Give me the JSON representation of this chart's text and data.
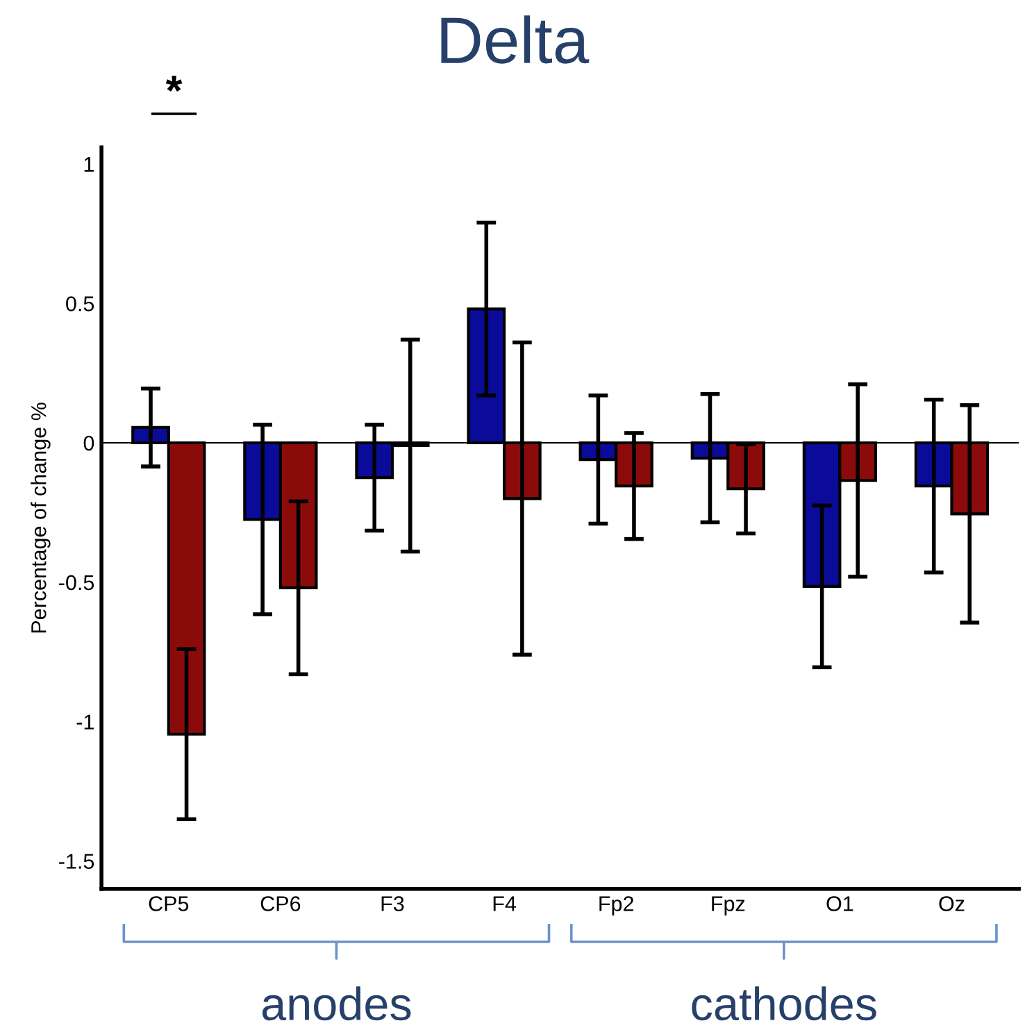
{
  "chart_data": {
    "type": "bar",
    "title": "Delta",
    "ylabel": "Percentage of change %",
    "categories": [
      "CP5",
      "CP6",
      "F3",
      "F4",
      "Fp2",
      "Fpz",
      "O1",
      "Oz"
    ],
    "series": [
      {
        "color": "#0b0b99",
        "values": [
          0.055,
          -0.275,
          -0.125,
          0.48,
          -0.06,
          -0.055,
          -0.515,
          -0.155
        ],
        "errors": [
          0.14,
          0.34,
          0.19,
          0.31,
          0.23,
          0.23,
          0.29,
          0.31
        ]
      },
      {
        "color": "#8b0b0b",
        "values": [
          -1.045,
          -0.52,
          -0.01,
          -0.2,
          -0.155,
          -0.165,
          -0.135,
          -0.255
        ],
        "errors": [
          0.305,
          0.31,
          0.38,
          0.56,
          0.19,
          0.16,
          0.345,
          0.39
        ]
      }
    ],
    "ylim": [
      -1.6,
      1.06
    ],
    "yticks": [
      -1.5,
      -1,
      -0.5,
      0,
      0.5,
      1
    ],
    "ref_lines": [
      {
        "axis": "y",
        "value": 0
      }
    ],
    "grid": false,
    "legend": false,
    "annotations": [
      "*",
      "anodes",
      "cathodes"
    ]
  }
}
